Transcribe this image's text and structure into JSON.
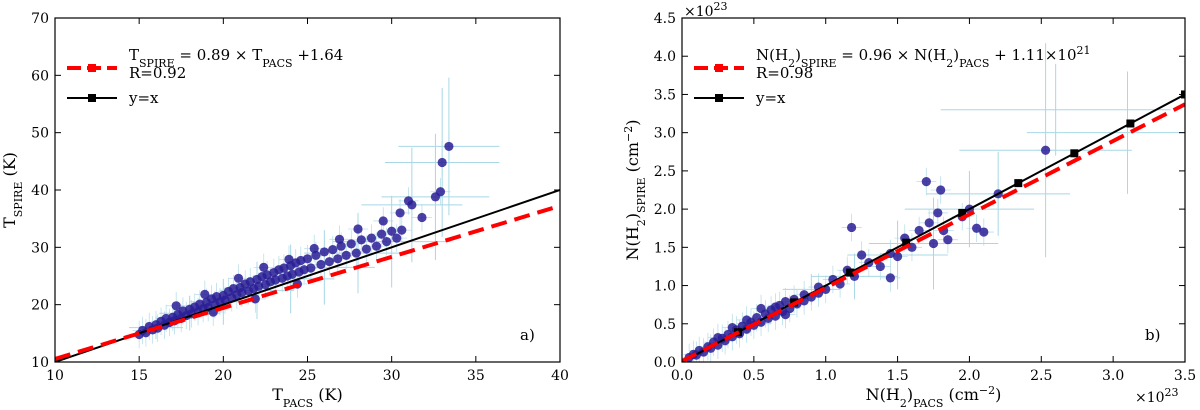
{
  "chart_data": [
    {
      "type": "scatter",
      "panel_label": "a)",
      "xlabel": {
        "base": "T",
        "sub": "PACS",
        "unit": " (K)"
      },
      "ylabel": {
        "base": "T",
        "sub": "SPIRE",
        "unit": " (K)"
      },
      "xlim": [
        10,
        40
      ],
      "ylim": [
        10,
        70
      ],
      "xticks": [
        10,
        15,
        20,
        25,
        30,
        35,
        40
      ],
      "yticks": [
        10,
        20,
        30,
        40,
        50,
        60,
        70
      ],
      "xtick_labels": [
        "10",
        "15",
        "20",
        "25",
        "30",
        "35",
        "40"
      ],
      "ytick_labels": [
        "10",
        "20",
        "30",
        "40",
        "50",
        "60",
        "70"
      ],
      "exponent_label": "",
      "grid": false,
      "legend_position": "top-left",
      "legend": [
        {
          "kind": "dashed-line",
          "color": "#ff0000",
          "text": {
            "p1": "T",
            "s1": "SPIRE",
            "p2": " = 0.89 × T",
            "s2": "PACS",
            "p3": " +1.64",
            "sup": ""
          },
          "extra": "R=0.92"
        },
        {
          "kind": "line-square",
          "color": "#000000",
          "text": {
            "p1": "y=x"
          }
        }
      ],
      "fit_line": {
        "slope": 0.89,
        "intercept": 1.64,
        "color": "#ff0000"
      },
      "identity_line": {
        "slope": 1,
        "intercept": 0,
        "color": "#000000",
        "markers": []
      },
      "points": [
        [
          15.0,
          14.8
        ],
        [
          15.2,
          15.5
        ],
        [
          15.4,
          15.1
        ],
        [
          15.6,
          16.2
        ],
        [
          15.8,
          15.6
        ],
        [
          16.0,
          16.5
        ],
        [
          16.1,
          15.9
        ],
        [
          16.3,
          17.1
        ],
        [
          16.5,
          16.4
        ],
        [
          16.6,
          17.6
        ],
        [
          16.8,
          16.9
        ],
        [
          17.0,
          17.8
        ],
        [
          17.1,
          17.2
        ],
        [
          17.3,
          18.3
        ],
        [
          17.5,
          17.6
        ],
        [
          17.6,
          18.9
        ],
        [
          17.8,
          18.1
        ],
        [
          18.0,
          19.2
        ],
        [
          18.1,
          18.4
        ],
        [
          18.3,
          19.6
        ],
        [
          18.5,
          18.8
        ],
        [
          18.6,
          20.1
        ],
        [
          18.8,
          19.3
        ],
        [
          19.0,
          20.4
        ],
        [
          19.1,
          19.5
        ],
        [
          19.3,
          21.0
        ],
        [
          19.5,
          20.0
        ],
        [
          19.6,
          21.4
        ],
        [
          19.8,
          20.5
        ],
        [
          20.0,
          21.6
        ],
        [
          20.1,
          20.8
        ],
        [
          20.3,
          22.3
        ],
        [
          20.5,
          21.2
        ],
        [
          20.6,
          22.8
        ],
        [
          20.8,
          21.7
        ],
        [
          21.0,
          23.0
        ],
        [
          21.1,
          22.1
        ],
        [
          21.3,
          23.6
        ],
        [
          21.5,
          22.4
        ],
        [
          21.6,
          24.0
        ],
        [
          21.8,
          22.8
        ],
        [
          22.0,
          24.4
        ],
        [
          22.1,
          23.2
        ],
        [
          22.3,
          24.9
        ],
        [
          22.5,
          23.5
        ],
        [
          22.6,
          25.2
        ],
        [
          22.8,
          24.0
        ],
        [
          23.0,
          25.6
        ],
        [
          23.1,
          24.3
        ],
        [
          23.3,
          26.1
        ],
        [
          23.5,
          24.6
        ],
        [
          23.6,
          26.4
        ],
        [
          23.8,
          25.0
        ],
        [
          24.0,
          26.8
        ],
        [
          24.1,
          25.3
        ],
        [
          24.3,
          27.3
        ],
        [
          24.5,
          25.7
        ],
        [
          24.6,
          27.7
        ],
        [
          24.8,
          26.1
        ],
        [
          25.0,
          28.0
        ],
        [
          25.2,
          26.4
        ],
        [
          25.5,
          28.6
        ],
        [
          25.8,
          27.0
        ],
        [
          26.0,
          29.2
        ],
        [
          26.3,
          27.5
        ],
        [
          26.5,
          29.6
        ],
        [
          26.8,
          28.0
        ],
        [
          27.0,
          30.2
        ],
        [
          27.3,
          28.6
        ],
        [
          27.6,
          30.6
        ],
        [
          27.9,
          29.0
        ],
        [
          28.2,
          31.3
        ],
        [
          28.5,
          29.7
        ],
        [
          28.8,
          31.6
        ],
        [
          29.1,
          30.2
        ],
        [
          29.4,
          32.3
        ],
        [
          29.7,
          31.0
        ],
        [
          30.0,
          32.8
        ],
        [
          30.3,
          31.6
        ],
        [
          30.6,
          33.0
        ],
        [
          31.0,
          38.1
        ],
        [
          31.2,
          37.4
        ],
        [
          30.5,
          36.0
        ],
        [
          32.6,
          38.8
        ],
        [
          32.9,
          39.7
        ],
        [
          33.0,
          44.8
        ],
        [
          33.4,
          47.6
        ],
        [
          31.8,
          35.2
        ],
        [
          29.5,
          34.6
        ],
        [
          28.0,
          33.2
        ],
        [
          17.2,
          19.8
        ],
        [
          18.9,
          21.8
        ],
        [
          20.9,
          24.6
        ],
        [
          22.4,
          26.5
        ],
        [
          23.9,
          27.9
        ],
        [
          25.4,
          29.8
        ],
        [
          26.9,
          31.4
        ],
        [
          19.4,
          18.7
        ],
        [
          21.9,
          21.0
        ],
        [
          24.4,
          23.6
        ]
      ],
      "error_bars": [
        [
          16.0,
          16.0,
          1.6,
          2.0
        ],
        [
          18.0,
          18.5,
          1.8,
          3.0
        ],
        [
          20.0,
          20.5,
          2.0,
          4.0
        ],
        [
          22.0,
          22.5,
          2.2,
          5.0
        ],
        [
          24.0,
          24.5,
          2.6,
          6.0
        ],
        [
          26.0,
          26.5,
          3.0,
          6.5
        ],
        [
          28.0,
          29.0,
          3.2,
          7.0
        ],
        [
          30.0,
          31.0,
          3.5,
          8.0
        ],
        [
          31.2,
          37.4,
          3.0,
          10.0
        ],
        [
          32.6,
          38.8,
          3.2,
          11.0
        ],
        [
          33.4,
          47.6,
          3.0,
          12.0
        ],
        [
          33.0,
          44.8,
          3.4,
          13.0
        ]
      ]
    },
    {
      "type": "scatter",
      "panel_label": "b)",
      "xlabel": {
        "base": "N(H",
        "sub": "2",
        "base2": ")",
        "sub2": "PACS",
        "unit": " (cm",
        "sup": "−2",
        "unit2": ")"
      },
      "ylabel": {
        "base": "N(H",
        "sub": "2",
        "base2": ")",
        "sub2": "SPIRE",
        "unit": " (cm",
        "sup": "−2",
        "unit2": ")"
      },
      "xlim": [
        0,
        3.5
      ],
      "ylim": [
        0,
        4.5
      ],
      "xticks": [
        0,
        0.5,
        1.0,
        1.5,
        2.0,
        2.5,
        3.0,
        3.5
      ],
      "yticks": [
        0,
        0.5,
        1.0,
        1.5,
        2.0,
        2.5,
        3.0,
        3.5,
        4.0,
        4.5
      ],
      "xtick_labels": [
        "0.0",
        "0.5",
        "1.0",
        "1.5",
        "2.0",
        "2.5",
        "3.0",
        "3.5"
      ],
      "ytick_labels": [
        "0.0",
        "0.5",
        "1.0",
        "1.5",
        "2.0",
        "2.5",
        "3.0",
        "3.5",
        "4.0",
        "4.5"
      ],
      "exponent_label": {
        "base": "×10",
        "sup": "23"
      },
      "grid": false,
      "legend_position": "top-left",
      "legend": [
        {
          "kind": "dashed-line",
          "color": "#ff0000",
          "text": {
            "p1": "N(H",
            "s1": "2",
            "p2": ")",
            "s2": "SPIRE",
            "p3": " = 0.96 × N(H",
            "s3": "2",
            "p4": ")",
            "s4": "PACS",
            "p5": " + 1.11×10",
            "sup": "21"
          },
          "extra": "R=0.98"
        },
        {
          "kind": "line-square",
          "color": "#000000",
          "text": {
            "p1": "y=x"
          }
        }
      ],
      "fit_line": {
        "slope": 0.96,
        "intercept": 0.0111,
        "color": "#ff0000"
      },
      "identity_line": {
        "slope": 1,
        "intercept": 0,
        "color": "#000000",
        "markers": [
          0.39,
          0.78,
          1.17,
          1.56,
          1.95,
          2.34,
          2.73,
          3.12,
          3.5
        ]
      },
      "points": [
        [
          0.05,
          0.06
        ],
        [
          0.08,
          0.1
        ],
        [
          0.1,
          0.09
        ],
        [
          0.12,
          0.15
        ],
        [
          0.15,
          0.13
        ],
        [
          0.18,
          0.2
        ],
        [
          0.2,
          0.18
        ],
        [
          0.22,
          0.26
        ],
        [
          0.25,
          0.22
        ],
        [
          0.28,
          0.31
        ],
        [
          0.3,
          0.28
        ],
        [
          0.32,
          0.36
        ],
        [
          0.35,
          0.33
        ],
        [
          0.38,
          0.42
        ],
        [
          0.4,
          0.37
        ],
        [
          0.42,
          0.47
        ],
        [
          0.45,
          0.43
        ],
        [
          0.48,
          0.52
        ],
        [
          0.5,
          0.48
        ],
        [
          0.52,
          0.58
        ],
        [
          0.55,
          0.52
        ],
        [
          0.58,
          0.63
        ],
        [
          0.6,
          0.57
        ],
        [
          0.62,
          0.68
        ],
        [
          0.65,
          0.6
        ],
        [
          0.68,
          0.74
        ],
        [
          0.7,
          0.66
        ],
        [
          0.72,
          0.79
        ],
        [
          0.75,
          0.7
        ],
        [
          0.78,
          0.82
        ],
        [
          0.8,
          0.76
        ],
        [
          0.85,
          0.88
        ],
        [
          0.9,
          0.85
        ],
        [
          0.95,
          0.98
        ],
        [
          1.0,
          0.95
        ],
        [
          1.05,
          1.08
        ],
        [
          1.1,
          1.02
        ],
        [
          1.15,
          1.2
        ],
        [
          1.18,
          1.76
        ],
        [
          1.2,
          1.12
        ],
        [
          1.3,
          1.3
        ],
        [
          1.38,
          1.25
        ],
        [
          1.45,
          1.42
        ],
        [
          1.5,
          1.38
        ],
        [
          1.55,
          1.62
        ],
        [
          1.6,
          1.5
        ],
        [
          1.65,
          1.72
        ],
        [
          1.7,
          2.36
        ],
        [
          1.72,
          1.82
        ],
        [
          1.75,
          1.55
        ],
        [
          1.78,
          1.95
        ],
        [
          1.8,
          2.25
        ],
        [
          1.82,
          1.72
        ],
        [
          1.85,
          1.6
        ],
        [
          1.95,
          1.9
        ],
        [
          2.0,
          2.0
        ],
        [
          2.05,
          1.75
        ],
        [
          2.1,
          1.7
        ],
        [
          2.2,
          2.2
        ],
        [
          2.53,
          2.77
        ],
        [
          0.25,
          0.32
        ],
        [
          0.35,
          0.45
        ],
        [
          0.45,
          0.55
        ],
        [
          0.55,
          0.7
        ],
        [
          0.65,
          0.72
        ],
        [
          0.72,
          0.62
        ],
        [
          0.85,
          0.8
        ],
        [
          0.95,
          0.9
        ],
        [
          1.25,
          1.4
        ],
        [
          1.45,
          1.1
        ]
      ],
      "error_bars": [
        [
          0.5,
          0.5,
          0.12,
          0.1
        ],
        [
          0.9,
          0.95,
          0.2,
          0.2
        ],
        [
          1.2,
          1.12,
          0.3,
          0.3
        ],
        [
          1.5,
          1.4,
          0.35,
          0.45
        ],
        [
          1.75,
          1.55,
          0.45,
          0.6
        ],
        [
          2.0,
          2.0,
          0.45,
          0.5
        ],
        [
          2.2,
          2.2,
          0.5,
          0.55
        ],
        [
          2.53,
          2.77,
          0.6,
          1.4
        ],
        [
          2.6,
          3.3,
          0.8,
          0.6
        ],
        [
          3.1,
          3.0,
          0.7,
          0.8
        ]
      ]
    }
  ]
}
